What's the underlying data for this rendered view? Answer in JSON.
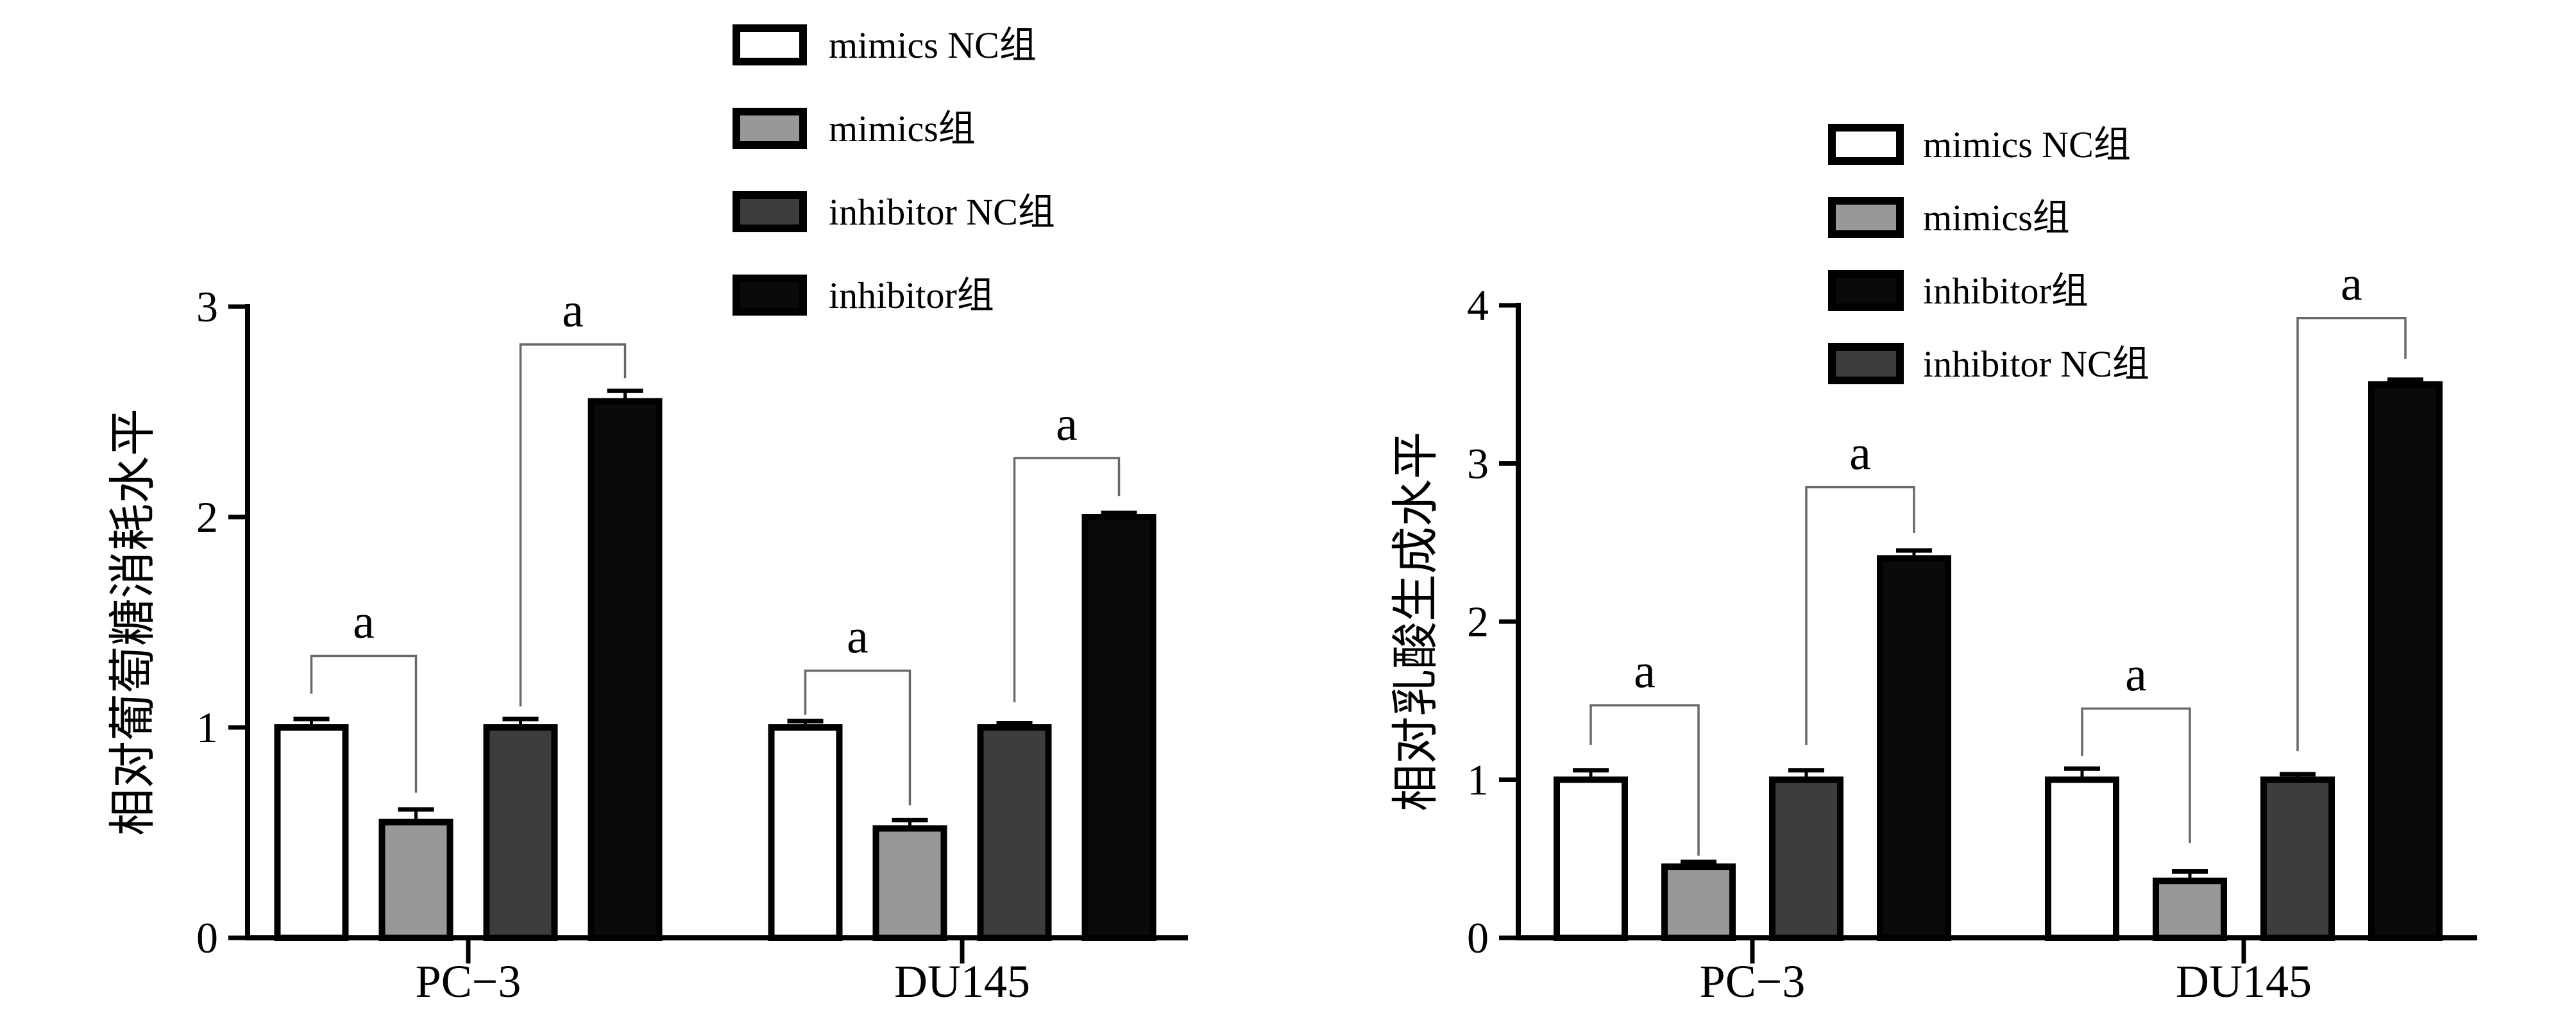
{
  "figure": {
    "background": "#ffffff",
    "bar_stroke": "#000000",
    "bracket_color": "#686868",
    "panel_count": 2
  },
  "chart_data": [
    {
      "id": "glucose",
      "type": "bar",
      "title": "",
      "ylabel": "相对葡萄糖消耗水平",
      "xlabel": "",
      "categories": [
        "PC−3",
        "DU145"
      ],
      "ylim": [
        0,
        3
      ],
      "yticks": [
        "0",
        "1",
        "2",
        "3"
      ],
      "grid": false,
      "series": [
        {
          "name": "mimics NC组",
          "slug": "mimics-nc",
          "fill": "#ffffff",
          "values": [
            1.0,
            1.0
          ],
          "errors": [
            0.04,
            0.03
          ]
        },
        {
          "name": "mimics组",
          "slug": "mimics",
          "fill": "#989898",
          "values": [
            0.55,
            0.52
          ],
          "errors": [
            0.06,
            0.04
          ]
        },
        {
          "name": "inhibitor NC组",
          "slug": "inhibitor-nc",
          "fill": "#3d3d3d",
          "values": [
            1.0,
            1.0
          ],
          "errors": [
            0.04,
            0.02
          ]
        },
        {
          "name": "inhibitor组",
          "slug": "inhibitor",
          "fill": "#0a0a0a",
          "values": [
            2.55,
            2.0
          ],
          "errors": [
            0.05,
            0.02
          ]
        }
      ],
      "legend": {
        "position": "top-center",
        "entries": [
          {
            "label": "mimics NC组",
            "fill": "#ffffff"
          },
          {
            "label": "mimics组",
            "fill": "#989898"
          },
          {
            "label": "inhibitor NC组",
            "fill": "#3d3d3d"
          },
          {
            "label": "inhibitor组",
            "fill": "#0a0a0a"
          }
        ]
      },
      "annotations": [
        {
          "label": "a",
          "group": 0,
          "from": 0,
          "to": 1,
          "y": 1.34,
          "drop_from": 1.16,
          "drop_to": 0.69
        },
        {
          "label": "a",
          "group": 0,
          "from": 2,
          "to": 3,
          "y": 2.82,
          "drop_from": 1.1,
          "drop_to": 2.66
        },
        {
          "label": "a",
          "group": 1,
          "from": 0,
          "to": 1,
          "y": 1.27,
          "drop_from": 1.06,
          "drop_to": 0.63
        },
        {
          "label": "a",
          "group": 1,
          "from": 2,
          "to": 3,
          "y": 2.28,
          "drop_from": 1.12,
          "drop_to": 2.1
        }
      ]
    },
    {
      "id": "lactate",
      "type": "bar",
      "title": "",
      "ylabel": "相对乳酸生成水平",
      "xlabel": "",
      "categories": [
        "PC−3",
        "DU145"
      ],
      "ylim": [
        0,
        4
      ],
      "yticks": [
        "0",
        "1",
        "2",
        "3",
        "4"
      ],
      "grid": false,
      "series": [
        {
          "name": "mimics NC组",
          "slug": "mimics-nc",
          "fill": "#ffffff",
          "values": [
            1.0,
            1.0
          ],
          "errors": [
            0.06,
            0.07
          ]
        },
        {
          "name": "mimics组",
          "slug": "mimics",
          "fill": "#989898",
          "values": [
            0.45,
            0.36
          ],
          "errors": [
            0.03,
            0.06
          ]
        },
        {
          "name": "inhibitor NC组",
          "slug": "inhibitor-nc",
          "fill": "#3d3d3d",
          "values": [
            1.0,
            1.0
          ],
          "errors": [
            0.06,
            0.035
          ]
        },
        {
          "name": "inhibitor组",
          "slug": "inhibitor",
          "fill": "#0a0a0a",
          "values": [
            2.4,
            3.5
          ],
          "errors": [
            0.05,
            0.03
          ]
        }
      ],
      "legend": {
        "position": "top-center",
        "entries": [
          {
            "label": "mimics NC组",
            "fill": "#ffffff"
          },
          {
            "label": "mimics组",
            "fill": "#989898"
          },
          {
            "label": "inhibitor组",
            "fill": "#0a0a0a"
          },
          {
            "label": "inhibitor NC组",
            "fill": "#3d3d3d"
          }
        ]
      },
      "annotations": [
        {
          "label": "a",
          "group": 0,
          "from": 0,
          "to": 1,
          "y": 1.47,
          "drop_from": 1.22,
          "drop_to": 0.52
        },
        {
          "label": "a",
          "group": 0,
          "from": 2,
          "to": 3,
          "y": 2.85,
          "drop_from": 1.22,
          "drop_to": 2.56
        },
        {
          "label": "a",
          "group": 1,
          "from": 0,
          "to": 1,
          "y": 1.45,
          "drop_from": 1.15,
          "drop_to": 0.6
        },
        {
          "label": "a",
          "group": 1,
          "from": 2,
          "to": 3,
          "y": 3.92,
          "drop_from": 1.18,
          "drop_to": 3.66
        }
      ]
    }
  ]
}
